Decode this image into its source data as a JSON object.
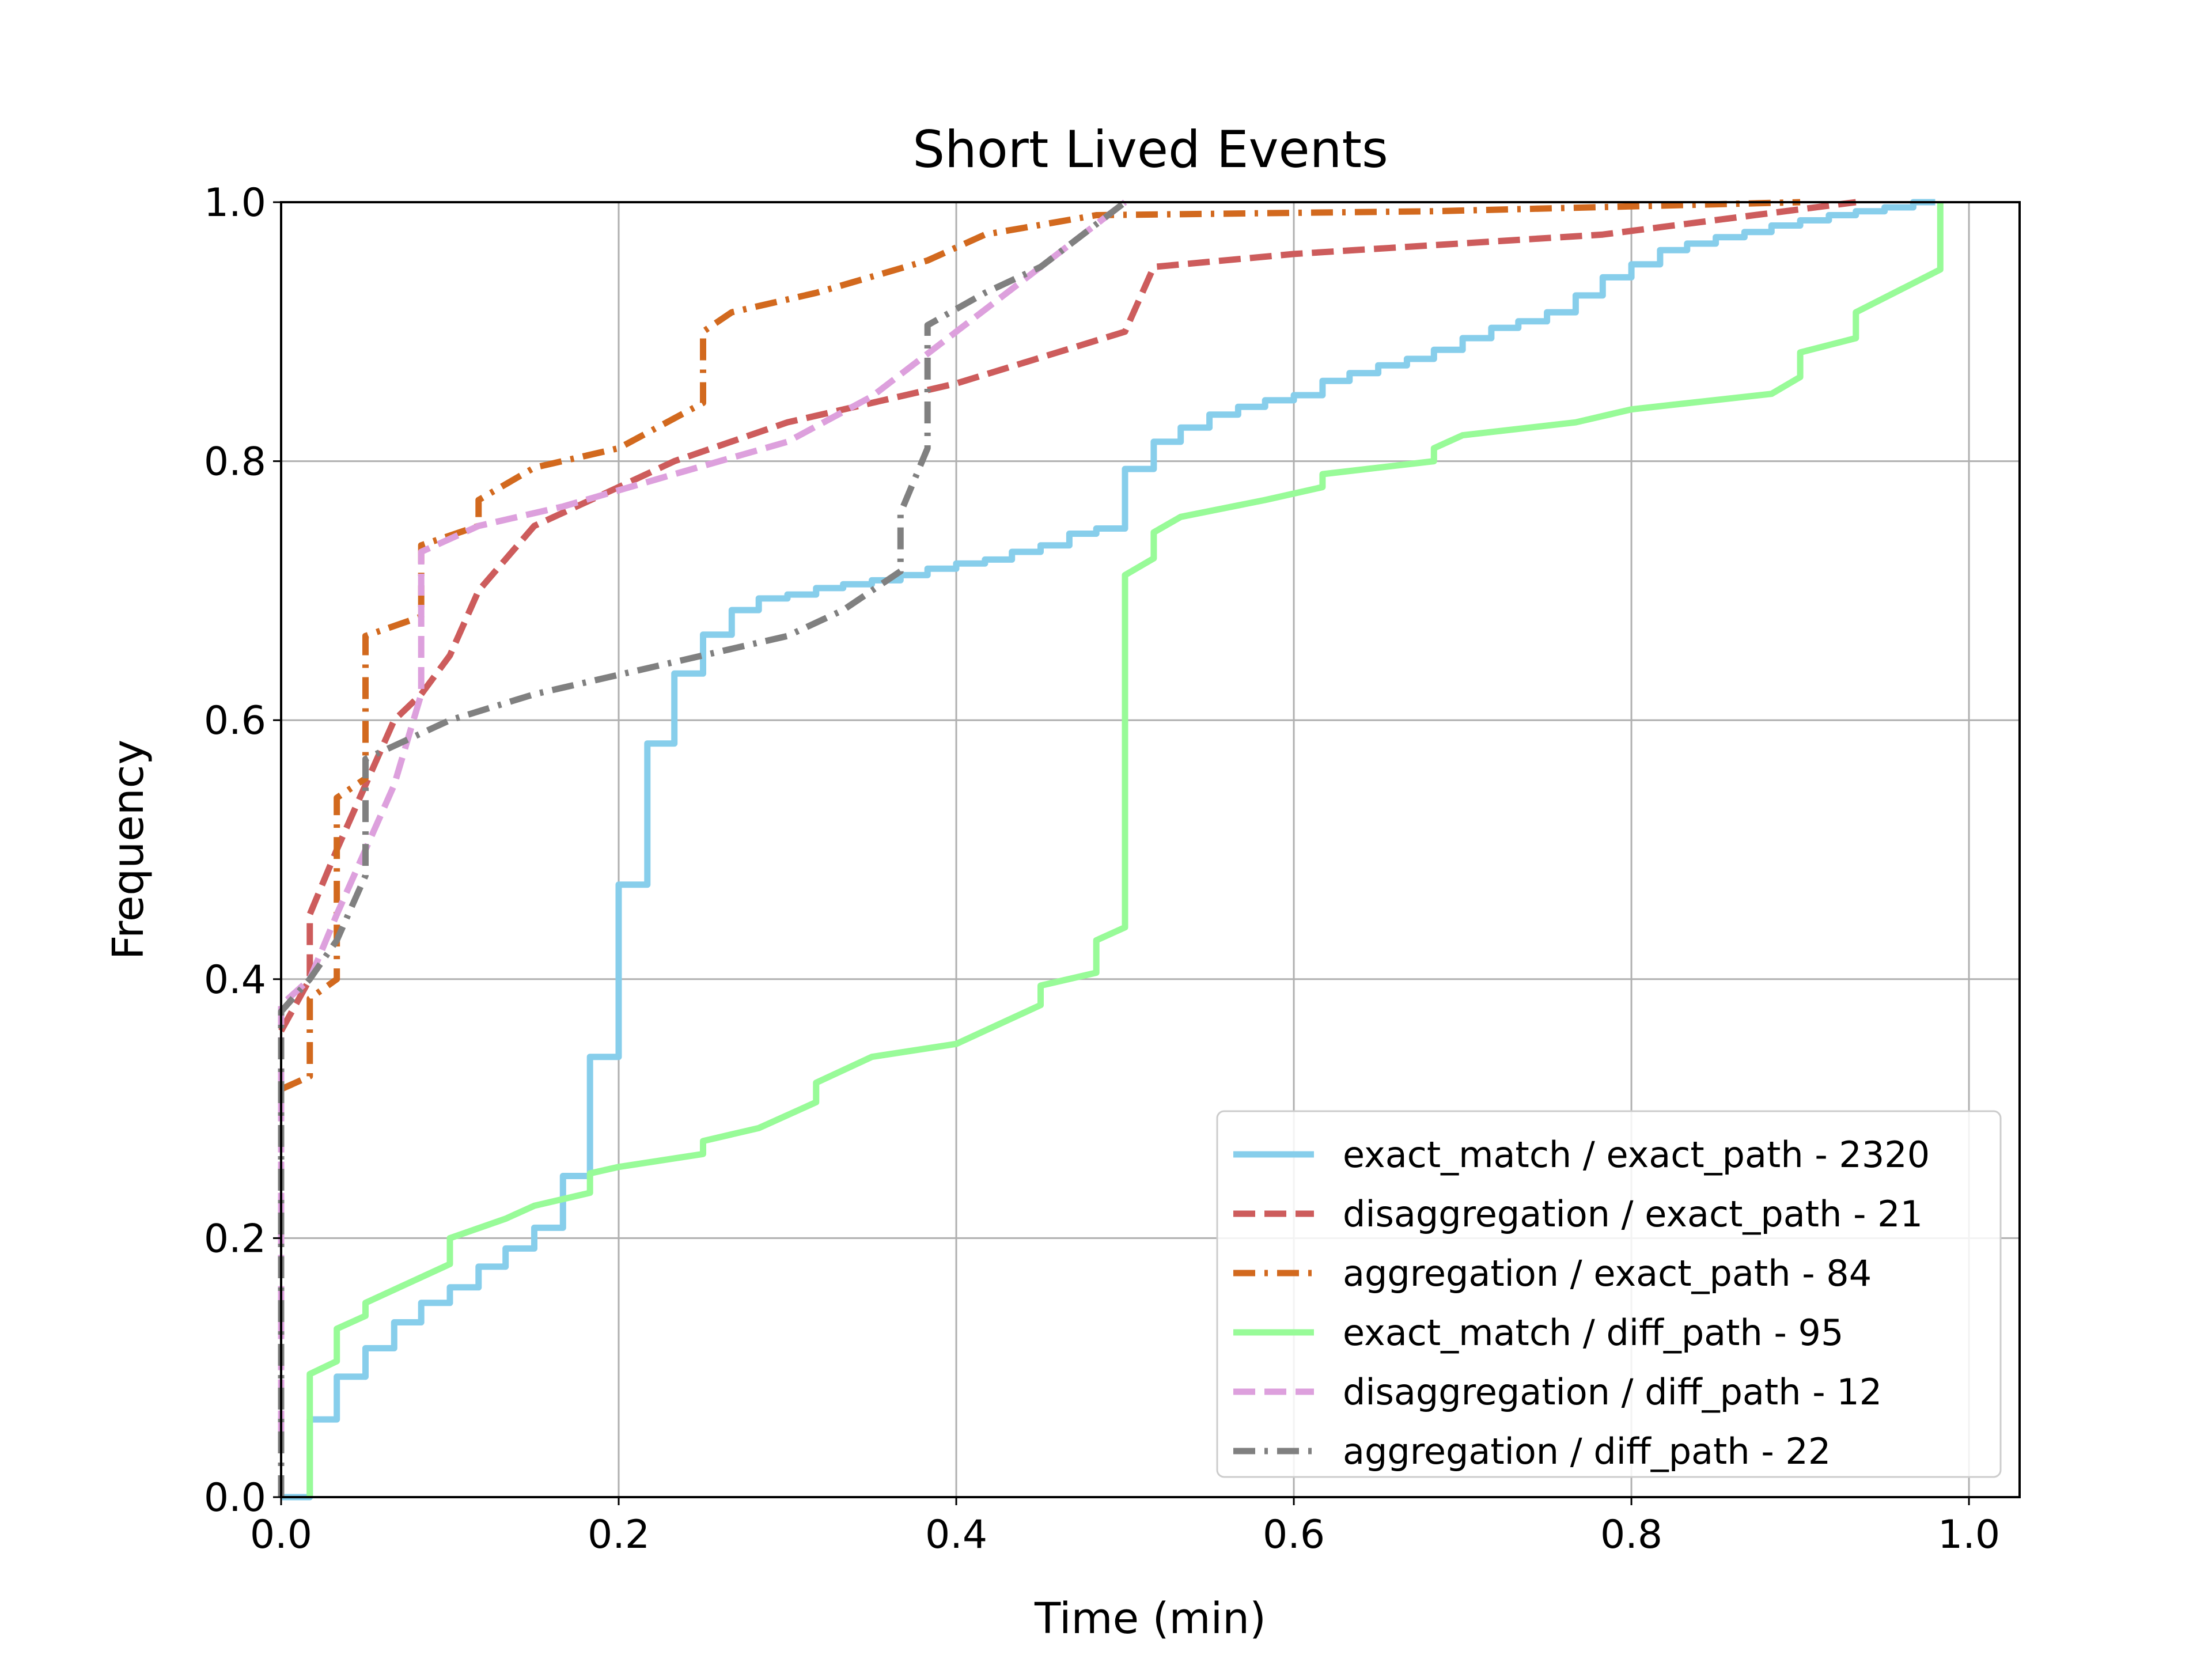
{
  "chart_data": {
    "type": "line",
    "title": "Short Lived Events",
    "xlabel": "Time (min)",
    "ylabel": "Frequency",
    "xlim": [
      0.0,
      1.03
    ],
    "ylim": [
      0.0,
      1.0
    ],
    "xticks": [
      "0.0",
      "0.2",
      "0.4",
      "0.6",
      "0.8",
      "1.0"
    ],
    "yticks": [
      "0.0",
      "0.2",
      "0.4",
      "0.6",
      "0.8",
      "1.0"
    ],
    "grid": true,
    "legend_position": "lower-right",
    "series": [
      {
        "name": "exact_match / exact_path - 2320",
        "color": "#87CEEB",
        "dash": "solid",
        "points": [
          [
            0,
            0
          ],
          [
            0.017,
            0
          ],
          [
            0.017,
            0.06
          ],
          [
            0.033,
            0.06
          ],
          [
            0.033,
            0.093
          ],
          [
            0.05,
            0.093
          ],
          [
            0.05,
            0.115
          ],
          [
            0.067,
            0.115
          ],
          [
            0.067,
            0.135
          ],
          [
            0.083,
            0.135
          ],
          [
            0.083,
            0.15
          ],
          [
            0.1,
            0.15
          ],
          [
            0.1,
            0.162
          ],
          [
            0.117,
            0.162
          ],
          [
            0.117,
            0.178
          ],
          [
            0.133,
            0.178
          ],
          [
            0.133,
            0.192
          ],
          [
            0.15,
            0.192
          ],
          [
            0.15,
            0.208
          ],
          [
            0.167,
            0.208
          ],
          [
            0.167,
            0.248
          ],
          [
            0.183,
            0.248
          ],
          [
            0.183,
            0.34
          ],
          [
            0.2,
            0.34
          ],
          [
            0.2,
            0.473
          ],
          [
            0.217,
            0.473
          ],
          [
            0.217,
            0.582
          ],
          [
            0.233,
            0.582
          ],
          [
            0.233,
            0.636
          ],
          [
            0.25,
            0.636
          ],
          [
            0.25,
            0.666
          ],
          [
            0.267,
            0.666
          ],
          [
            0.267,
            0.685
          ],
          [
            0.283,
            0.685
          ],
          [
            0.283,
            0.694
          ],
          [
            0.3,
            0.694
          ],
          [
            0.3,
            0.697
          ],
          [
            0.317,
            0.697
          ],
          [
            0.317,
            0.702
          ],
          [
            0.333,
            0.702
          ],
          [
            0.333,
            0.705
          ],
          [
            0.35,
            0.705
          ],
          [
            0.35,
            0.708
          ],
          [
            0.367,
            0.708
          ],
          [
            0.367,
            0.712
          ],
          [
            0.383,
            0.712
          ],
          [
            0.383,
            0.717
          ],
          [
            0.4,
            0.717
          ],
          [
            0.4,
            0.721
          ],
          [
            0.417,
            0.721
          ],
          [
            0.417,
            0.724
          ],
          [
            0.433,
            0.724
          ],
          [
            0.433,
            0.73
          ],
          [
            0.45,
            0.73
          ],
          [
            0.45,
            0.735
          ],
          [
            0.467,
            0.735
          ],
          [
            0.467,
            0.744
          ],
          [
            0.483,
            0.744
          ],
          [
            0.483,
            0.748
          ],
          [
            0.5,
            0.748
          ],
          [
            0.5,
            0.794
          ],
          [
            0.517,
            0.794
          ],
          [
            0.517,
            0.815
          ],
          [
            0.533,
            0.815
          ],
          [
            0.533,
            0.826
          ],
          [
            0.55,
            0.826
          ],
          [
            0.55,
            0.836
          ],
          [
            0.567,
            0.836
          ],
          [
            0.567,
            0.842
          ],
          [
            0.583,
            0.842
          ],
          [
            0.583,
            0.847
          ],
          [
            0.6,
            0.847
          ],
          [
            0.6,
            0.851
          ],
          [
            0.617,
            0.851
          ],
          [
            0.617,
            0.862
          ],
          [
            0.633,
            0.862
          ],
          [
            0.633,
            0.868
          ],
          [
            0.65,
            0.868
          ],
          [
            0.65,
            0.874
          ],
          [
            0.667,
            0.874
          ],
          [
            0.667,
            0.879
          ],
          [
            0.683,
            0.879
          ],
          [
            0.683,
            0.886
          ],
          [
            0.7,
            0.886
          ],
          [
            0.7,
            0.895
          ],
          [
            0.717,
            0.895
          ],
          [
            0.717,
            0.903
          ],
          [
            0.733,
            0.903
          ],
          [
            0.733,
            0.908
          ],
          [
            0.75,
            0.908
          ],
          [
            0.75,
            0.915
          ],
          [
            0.767,
            0.915
          ],
          [
            0.767,
            0.928
          ],
          [
            0.783,
            0.928
          ],
          [
            0.783,
            0.942
          ],
          [
            0.8,
            0.942
          ],
          [
            0.8,
            0.952
          ],
          [
            0.817,
            0.952
          ],
          [
            0.817,
            0.963
          ],
          [
            0.833,
            0.963
          ],
          [
            0.833,
            0.968
          ],
          [
            0.85,
            0.968
          ],
          [
            0.85,
            0.973
          ],
          [
            0.867,
            0.973
          ],
          [
            0.867,
            0.977
          ],
          [
            0.883,
            0.977
          ],
          [
            0.883,
            0.982
          ],
          [
            0.9,
            0.982
          ],
          [
            0.9,
            0.986
          ],
          [
            0.917,
            0.986
          ],
          [
            0.917,
            0.99
          ],
          [
            0.933,
            0.99
          ],
          [
            0.933,
            0.993
          ],
          [
            0.95,
            0.993
          ],
          [
            0.95,
            0.996
          ],
          [
            0.967,
            0.996
          ],
          [
            0.967,
            1.0
          ],
          [
            0.98,
            1.0
          ]
        ]
      },
      {
        "name": "disaggregation / exact_path - 21",
        "color": "#CD5C5C",
        "dash": "dashed",
        "points": [
          [
            0,
            0.36
          ],
          [
            0.017,
            0.4
          ],
          [
            0.017,
            0.45
          ],
          [
            0.033,
            0.5
          ],
          [
            0.05,
            0.55
          ],
          [
            0.067,
            0.6
          ],
          [
            0.083,
            0.62
          ],
          [
            0.1,
            0.65
          ],
          [
            0.117,
            0.7
          ],
          [
            0.15,
            0.75
          ],
          [
            0.2,
            0.78
          ],
          [
            0.233,
            0.8
          ],
          [
            0.3,
            0.83
          ],
          [
            0.4,
            0.86
          ],
          [
            0.5,
            0.9
          ],
          [
            0.517,
            0.95
          ],
          [
            0.6,
            0.96
          ],
          [
            0.783,
            0.975
          ],
          [
            0.933,
            1.0
          ]
        ]
      },
      {
        "name": "aggregation / exact_path - 84",
        "color": "#D2691E",
        "dash": "dashdot",
        "points": [
          [
            0,
            0.315
          ],
          [
            0.017,
            0.325
          ],
          [
            0.017,
            0.385
          ],
          [
            0.033,
            0.4
          ],
          [
            0.033,
            0.54
          ],
          [
            0.05,
            0.555
          ],
          [
            0.05,
            0.665
          ],
          [
            0.083,
            0.68
          ],
          [
            0.083,
            0.735
          ],
          [
            0.117,
            0.75
          ],
          [
            0.117,
            0.77
          ],
          [
            0.15,
            0.795
          ],
          [
            0.2,
            0.81
          ],
          [
            0.25,
            0.845
          ],
          [
            0.25,
            0.9
          ],
          [
            0.267,
            0.915
          ],
          [
            0.317,
            0.93
          ],
          [
            0.383,
            0.955
          ],
          [
            0.417,
            0.975
          ],
          [
            0.483,
            0.99
          ],
          [
            0.683,
            0.993
          ],
          [
            0.9,
            1.0
          ]
        ]
      },
      {
        "name": "exact_match / diff_path - 95",
        "color": "#98FB98",
        "dash": "solid",
        "points": [
          [
            0.017,
            0
          ],
          [
            0.017,
            0.095
          ],
          [
            0.033,
            0.105
          ],
          [
            0.033,
            0.13
          ],
          [
            0.05,
            0.14
          ],
          [
            0.05,
            0.15
          ],
          [
            0.1,
            0.18
          ],
          [
            0.1,
            0.2
          ],
          [
            0.133,
            0.215
          ],
          [
            0.15,
            0.225
          ],
          [
            0.183,
            0.235
          ],
          [
            0.183,
            0.25
          ],
          [
            0.2,
            0.255
          ],
          [
            0.25,
            0.265
          ],
          [
            0.25,
            0.275
          ],
          [
            0.283,
            0.285
          ],
          [
            0.317,
            0.305
          ],
          [
            0.317,
            0.32
          ],
          [
            0.35,
            0.34
          ],
          [
            0.4,
            0.35
          ],
          [
            0.45,
            0.38
          ],
          [
            0.45,
            0.395
          ],
          [
            0.483,
            0.405
          ],
          [
            0.483,
            0.43
          ],
          [
            0.5,
            0.44
          ],
          [
            0.5,
            0.712
          ],
          [
            0.517,
            0.725
          ],
          [
            0.517,
            0.745
          ],
          [
            0.533,
            0.757
          ],
          [
            0.583,
            0.77
          ],
          [
            0.617,
            0.78
          ],
          [
            0.617,
            0.79
          ],
          [
            0.683,
            0.8
          ],
          [
            0.683,
            0.81
          ],
          [
            0.7,
            0.82
          ],
          [
            0.767,
            0.83
          ],
          [
            0.8,
            0.84
          ],
          [
            0.883,
            0.852
          ],
          [
            0.9,
            0.865
          ],
          [
            0.9,
            0.884
          ],
          [
            0.933,
            0.895
          ],
          [
            0.933,
            0.915
          ],
          [
            0.983,
            0.948
          ],
          [
            0.983,
            1.0
          ]
        ]
      },
      {
        "name": "disaggregation / diff_path - 12",
        "color": "#DDA0DD",
        "dash": "dashed",
        "points": [
          [
            0,
            0.05
          ],
          [
            0,
            0.38
          ],
          [
            0.017,
            0.4
          ],
          [
            0.033,
            0.45
          ],
          [
            0.05,
            0.5
          ],
          [
            0.067,
            0.55
          ],
          [
            0.083,
            0.62
          ],
          [
            0.083,
            0.73
          ],
          [
            0.117,
            0.75
          ],
          [
            0.167,
            0.765
          ],
          [
            0.233,
            0.79
          ],
          [
            0.3,
            0.815
          ],
          [
            0.35,
            0.85
          ],
          [
            0.4,
            0.9
          ],
          [
            0.45,
            0.95
          ],
          [
            0.5,
            1.0
          ]
        ]
      },
      {
        "name": "aggregation / diff_path - 22",
        "color": "#808080",
        "dash": "dashdot",
        "points": [
          [
            0,
            0
          ],
          [
            0,
            0.375
          ],
          [
            0.017,
            0.4
          ],
          [
            0.033,
            0.43
          ],
          [
            0.05,
            0.48
          ],
          [
            0.05,
            0.57
          ],
          [
            0.1,
            0.6
          ],
          [
            0.15,
            0.62
          ],
          [
            0.2,
            0.635
          ],
          [
            0.3,
            0.665
          ],
          [
            0.333,
            0.685
          ],
          [
            0.367,
            0.715
          ],
          [
            0.367,
            0.76
          ],
          [
            0.383,
            0.81
          ],
          [
            0.383,
            0.905
          ],
          [
            0.417,
            0.93
          ],
          [
            0.45,
            0.95
          ],
          [
            0.5,
            1.0
          ]
        ]
      }
    ]
  }
}
